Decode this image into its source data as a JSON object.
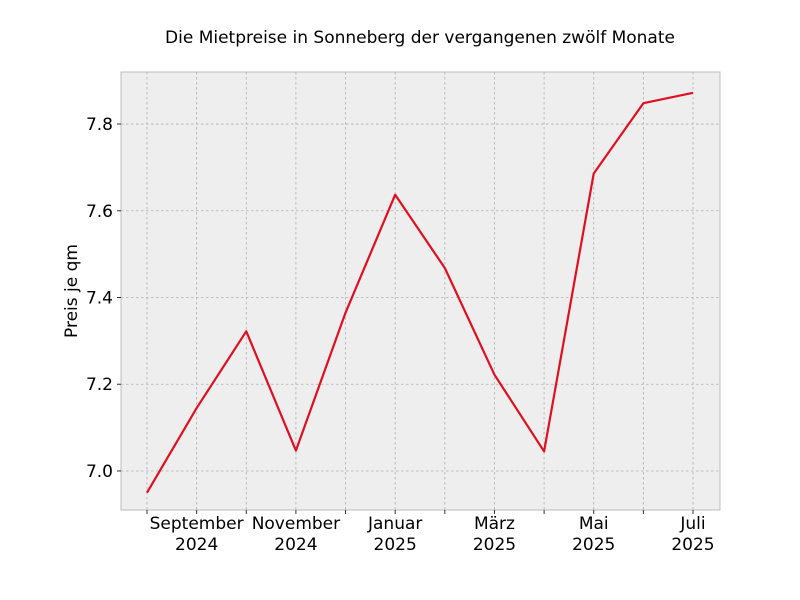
{
  "chart_data": {
    "type": "line",
    "title": "Die Mietpreise in Sonneberg der vergangenen zwölf Monate",
    "xlabel": "",
    "ylabel": "Preis je qm",
    "x": [
      "2024-08",
      "2024-09",
      "2024-10",
      "2024-11",
      "2024-12",
      "2025-01",
      "2025-02",
      "2025-03",
      "2025-04",
      "2025-05",
      "2025-06",
      "2025-07"
    ],
    "x_tick_labels": [
      {
        "x": "2024-09",
        "line1": "September",
        "line2": "2024"
      },
      {
        "x": "2024-11",
        "line1": "November",
        "line2": "2024"
      },
      {
        "x": "2025-01",
        "line1": "Januar",
        "line2": "2025"
      },
      {
        "x": "2025-03",
        "line1": "März",
        "line2": "2025"
      },
      {
        "x": "2025-05",
        "line1": "Mai",
        "line2": "2025"
      },
      {
        "x": "2025-07",
        "line1": "Juli",
        "line2": "2025"
      }
    ],
    "series": [
      {
        "values": [
          6.95,
          7.145,
          7.322,
          7.047,
          7.365,
          7.637,
          7.468,
          7.222,
          7.045,
          7.686,
          7.848,
          7.872
        ],
        "color": "#e01020"
      }
    ],
    "ylim": [
      6.91,
      7.92
    ],
    "yticks": [
      "7.0",
      "7.2",
      "7.4",
      "7.6",
      "7.8"
    ],
    "grid": true,
    "legend": "none"
  }
}
